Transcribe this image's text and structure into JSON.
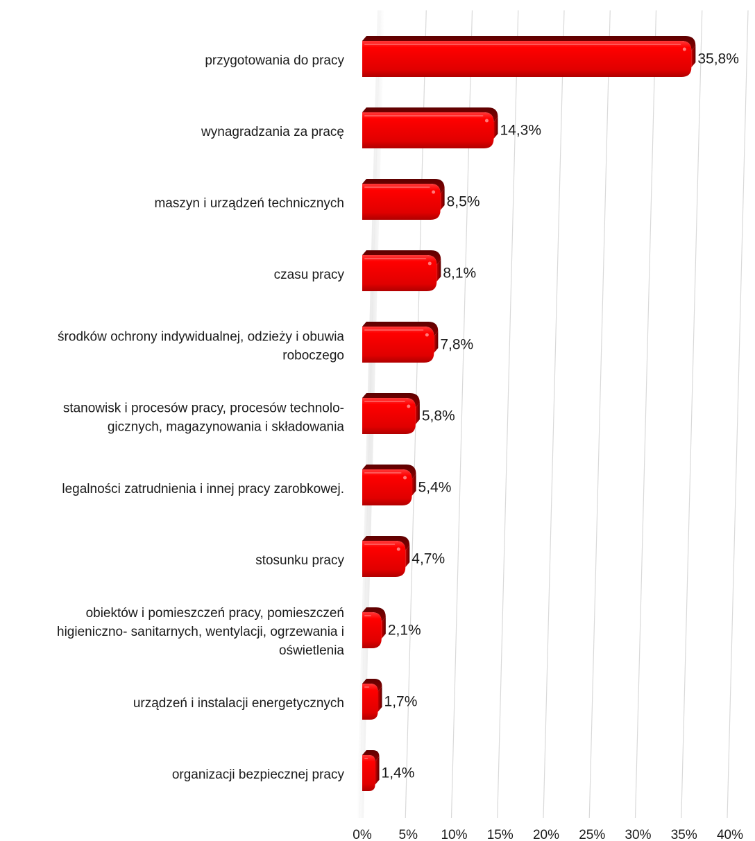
{
  "chart_data": {
    "type": "bar",
    "orientation": "horizontal",
    "categories": [
      [
        "przygotowania do pracy"
      ],
      [
        "wynagradzania za pracę"
      ],
      [
        "maszyn i urządzeń technicznych"
      ],
      [
        "czasu pracy"
      ],
      [
        "środków ochrony indywidualnej, odzieży i obuwia",
        "roboczego"
      ],
      [
        "stanowisk i procesów pracy, procesów technolo-",
        "gicznych, magazynowania i składowania"
      ],
      [
        "legalności zatrudnienia i innej pracy zarobkowej."
      ],
      [
        "stosunku pracy"
      ],
      [
        "obiektów i pomieszczeń pracy, pomieszczeń",
        "higieniczno- sanitarnych, wentylacji, ogrzewania i",
        "oświetlenia"
      ],
      [
        "urządzeń i instalacji energetycznych"
      ],
      [
        "organizacji bezpiecznej pracy"
      ]
    ],
    "values": [
      35.8,
      14.3,
      8.5,
      8.1,
      7.8,
      5.8,
      5.4,
      4.7,
      2.1,
      1.7,
      1.4
    ],
    "value_labels": [
      "35,8%",
      "14,3%",
      "8,5%",
      "8,1%",
      "7,8%",
      "5,8%",
      "5,4%",
      "4,7%",
      "2,1%",
      "1,7%",
      "1,4%"
    ],
    "xlim": [
      0,
      40
    ],
    "xticks": [
      0,
      5,
      10,
      15,
      20,
      25,
      30,
      35,
      40
    ],
    "xtick_labels": [
      "0%",
      "5%",
      "10%",
      "15%",
      "20%",
      "25%",
      "30%",
      "35%",
      "40%"
    ],
    "grid": true,
    "bar_color": "#ff0000",
    "bar_dark_color": "#7a0000",
    "title": "",
    "xlabel": "",
    "ylabel": ""
  }
}
